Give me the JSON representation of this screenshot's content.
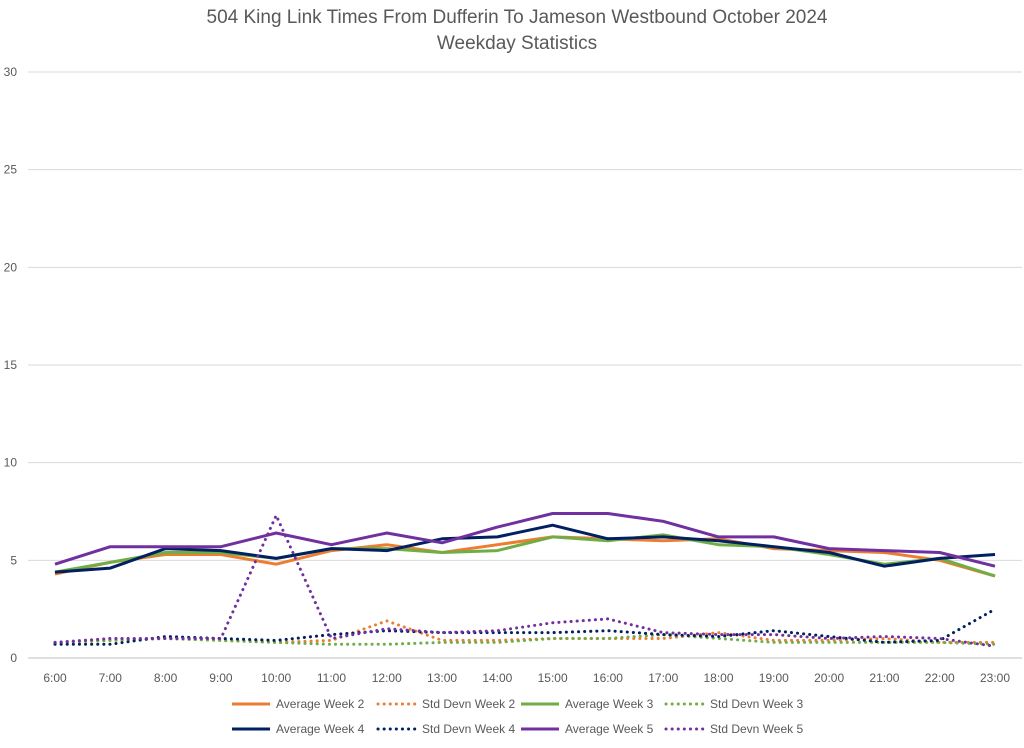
{
  "chart_data": {
    "type": "line",
    "title": "504 King Link Times From Dufferin To Jameson Westbound October 2024",
    "subtitle": "Weekday Statistics",
    "xlabel": "",
    "ylabel": "",
    "categories": [
      "6:00",
      "7:00",
      "8:00",
      "9:00",
      "10:00",
      "11:00",
      "12:00",
      "13:00",
      "14:00",
      "15:00",
      "16:00",
      "17:00",
      "18:00",
      "19:00",
      "20:00",
      "21:00",
      "22:00",
      "23:00"
    ],
    "ylim": [
      0,
      30
    ],
    "yticks": [
      0,
      5,
      10,
      15,
      20,
      25,
      30
    ],
    "grid": true,
    "legend_position": "bottom",
    "series": [
      {
        "name": "Average Week 2",
        "color": "#ED7D31",
        "style": "solid",
        "values": [
          4.3,
          4.9,
          5.3,
          5.3,
          4.8,
          5.5,
          5.8,
          5.4,
          5.8,
          6.2,
          6.1,
          6.0,
          6.1,
          5.6,
          5.5,
          5.4,
          5.0,
          4.2
        ]
      },
      {
        "name": "Std Devn Week 2",
        "color": "#ED7D31",
        "style": "dotted",
        "values": [
          0.8,
          0.9,
          1.0,
          0.9,
          0.8,
          0.9,
          1.9,
          0.9,
          0.9,
          1.0,
          1.0,
          1.0,
          1.3,
          0.9,
          0.9,
          1.0,
          0.8,
          0.8
        ]
      },
      {
        "name": "Std Devn Week 3",
        "color": "#70AD47",
        "style": "dotted",
        "values": [
          0.8,
          0.9,
          1.0,
          0.9,
          0.8,
          0.7,
          0.7,
          0.8,
          0.8,
          1.0,
          1.0,
          1.2,
          1.0,
          0.8,
          0.8,
          0.8,
          0.8,
          0.7
        ]
      },
      {
        "name": "Average Week 3",
        "color": "#70AD47",
        "style": "solid",
        "values": [
          4.4,
          4.9,
          5.4,
          5.4,
          5.1,
          5.6,
          5.6,
          5.4,
          5.5,
          6.2,
          6.0,
          6.3,
          5.8,
          5.7,
          5.3,
          4.8,
          5.1,
          4.2
        ]
      },
      {
        "name": "Average Week 4",
        "color": "#002060",
        "style": "solid",
        "values": [
          4.4,
          4.6,
          5.6,
          5.5,
          5.1,
          5.6,
          5.5,
          6.1,
          6.2,
          6.8,
          6.1,
          6.2,
          6.0,
          5.7,
          5.4,
          4.7,
          5.1,
          5.3
        ]
      },
      {
        "name": "Std Devn Week 4",
        "color": "#002060",
        "style": "dotted",
        "values": [
          0.7,
          0.7,
          1.1,
          1.0,
          0.9,
          1.2,
          1.4,
          1.3,
          1.3,
          1.3,
          1.4,
          1.2,
          1.1,
          1.4,
          1.1,
          0.8,
          0.9,
          2.5
        ]
      },
      {
        "name": "Average Week 5",
        "color": "#7030A0",
        "style": "solid",
        "values": [
          4.8,
          5.7,
          5.7,
          5.7,
          6.4,
          5.8,
          6.4,
          5.9,
          6.7,
          7.4,
          7.4,
          7.0,
          6.2,
          6.2,
          5.6,
          5.5,
          5.4,
          4.7
        ]
      },
      {
        "name": "Std Devn Week 5",
        "color": "#7030A0",
        "style": "dotted",
        "values": [
          0.8,
          1.0,
          1.0,
          1.0,
          7.3,
          1.0,
          1.5,
          1.3,
          1.4,
          1.8,
          2.0,
          1.3,
          1.2,
          1.2,
          1.0,
          1.1,
          1.0,
          0.6
        ]
      }
    ],
    "legend_order": [
      "Average Week 2",
      "Std Devn Week 2",
      "Average Week 3",
      "Std Devn Week 3",
      "Average Week 4",
      "Std Devn Week 4",
      "Average Week 5",
      "Std Devn Week 5"
    ]
  }
}
